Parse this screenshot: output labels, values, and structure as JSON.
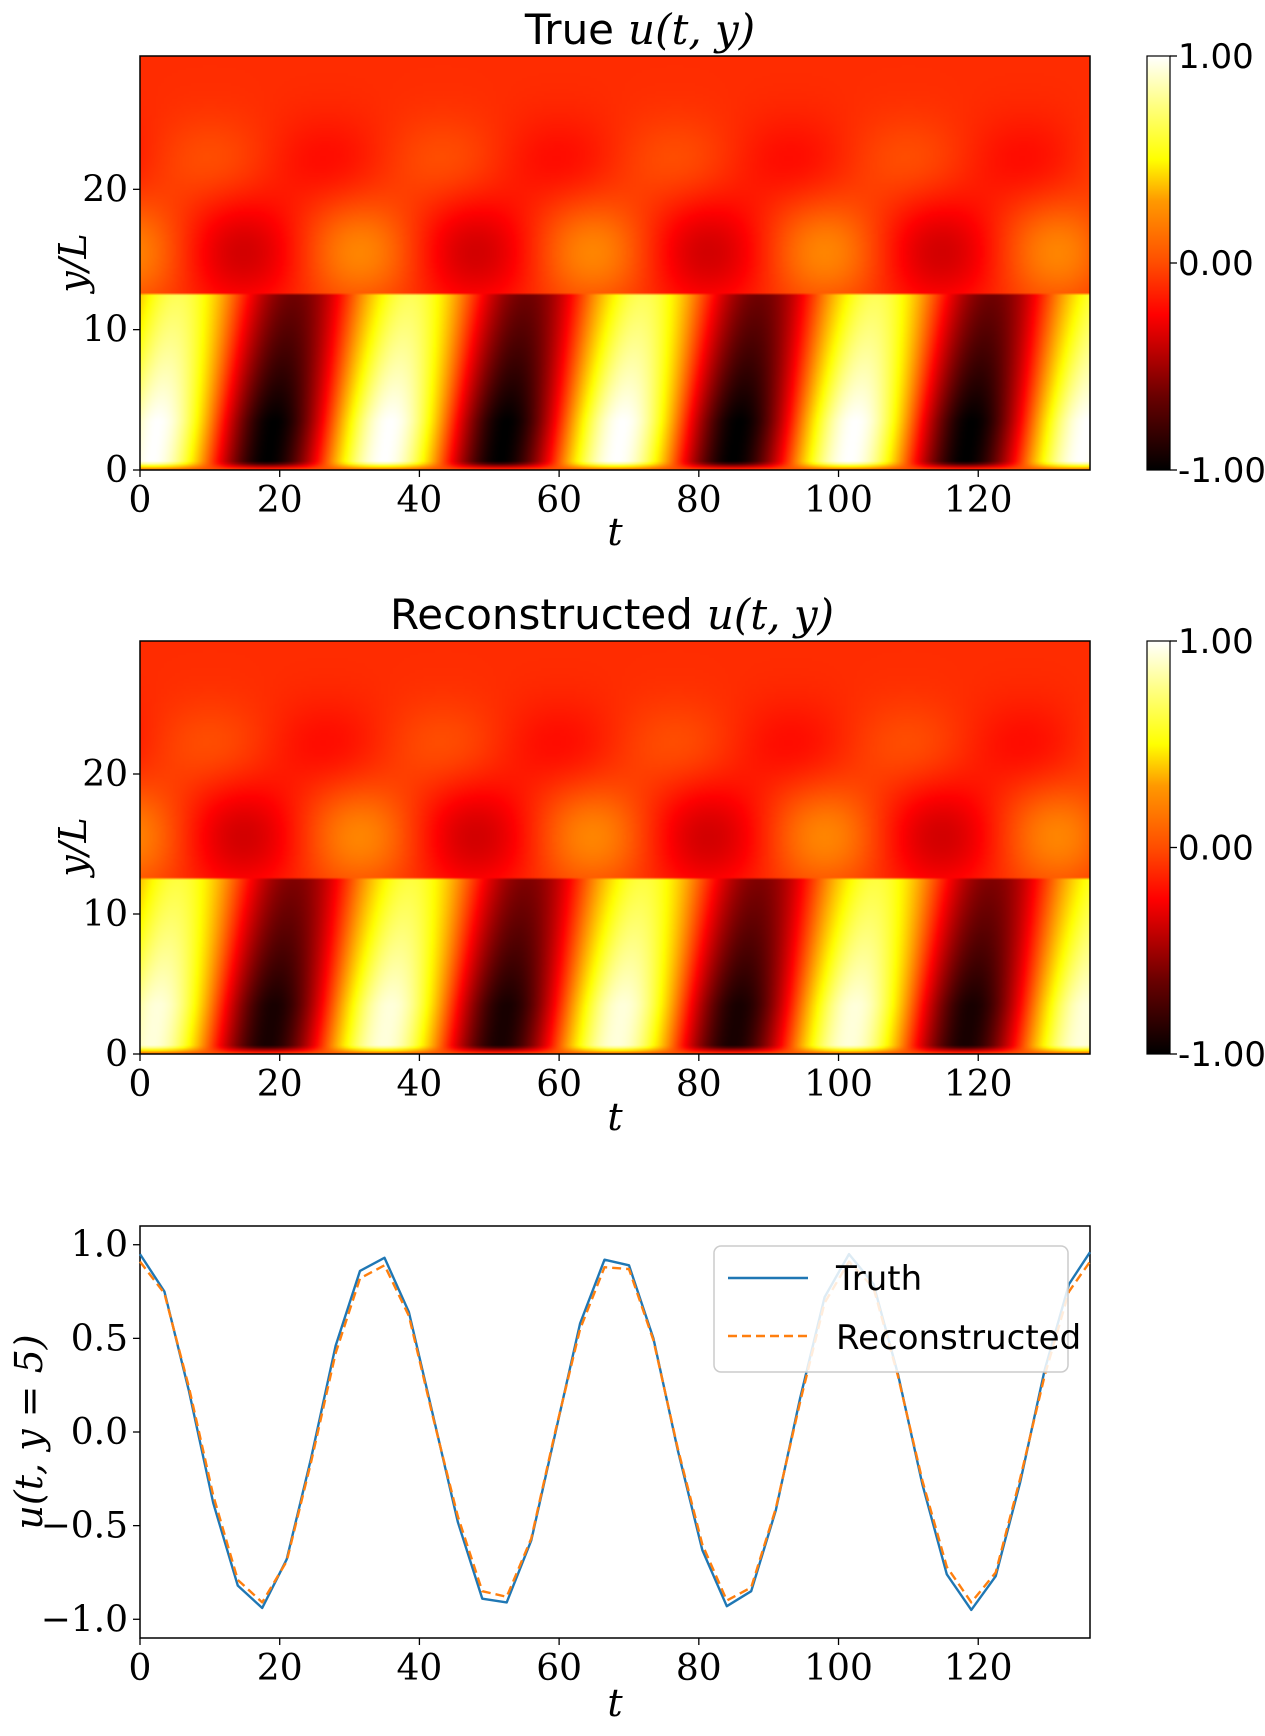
{
  "chart_data": [
    {
      "type": "heatmap",
      "title_text": "True",
      "title_math": "u(t, y)",
      "xlabel": "t",
      "ylabel": "y/L",
      "xlim": [
        0,
        136
      ],
      "ylim": [
        0,
        29.5
      ],
      "xticks": [
        "0",
        "20",
        "40",
        "60",
        "80",
        "100",
        "120"
      ],
      "xtick_values": [
        0,
        20,
        40,
        60,
        80,
        100,
        120
      ],
      "yticks": [
        "0",
        "10",
        "20"
      ],
      "ytick_values": [
        0,
        10,
        20
      ],
      "colormap": "hot",
      "colorbar_ticks": [
        "1.00",
        "0.00",
        "-1.00"
      ],
      "colorbar_values": [
        1,
        0,
        -1
      ],
      "period": 33.3,
      "amplitude": 1.0
    },
    {
      "type": "heatmap",
      "title_text": "Reconstructed",
      "title_math": "u(t, y)",
      "xlabel": "t",
      "ylabel": "y/L",
      "xlim": [
        0,
        136
      ],
      "ylim": [
        0,
        29.5
      ],
      "xticks": [
        "0",
        "20",
        "40",
        "60",
        "80",
        "100",
        "120"
      ],
      "xtick_values": [
        0,
        20,
        40,
        60,
        80,
        100,
        120
      ],
      "yticks": [
        "0",
        "10",
        "20"
      ],
      "ytick_values": [
        0,
        10,
        20
      ],
      "colormap": "hot",
      "colorbar_ticks": [
        "1.00",
        "0.00",
        "-1.00"
      ],
      "colorbar_values": [
        1,
        0,
        -1
      ],
      "period": 33.3,
      "amplitude": 0.93
    },
    {
      "type": "line",
      "xlabel": "t",
      "ylabel": "u(t, y = 5)",
      "xlim": [
        0,
        136
      ],
      "ylim": [
        -1.1,
        1.1
      ],
      "xticks": [
        "0",
        "20",
        "40",
        "60",
        "80",
        "100",
        "120"
      ],
      "xtick_values": [
        0,
        20,
        40,
        60,
        80,
        100,
        120
      ],
      "yticks": [
        "1.0",
        "0.5",
        "0.0",
        "−0.5",
        "−1.0"
      ],
      "ytick_values": [
        1.0,
        0.5,
        0.0,
        -0.5,
        -1.0
      ],
      "legend_position": "upper right",
      "x": [
        0,
        3.5,
        7,
        10.5,
        14,
        17.5,
        21,
        24.5,
        28,
        31.5,
        35,
        38.5,
        42,
        45.5,
        49,
        52.5,
        56,
        59.5,
        63,
        66.5,
        70,
        73.5,
        77,
        80.5,
        84,
        87.5,
        91,
        94.5,
        98,
        101.5,
        105,
        108.5,
        112,
        115.5,
        119,
        122.5,
        126,
        129.5,
        133,
        136
      ],
      "series": [
        {
          "name": "Truth",
          "color": "#1f77b4",
          "style": "solid",
          "values": [
            0.95,
            0.75,
            0.22,
            -0.38,
            -0.82,
            -0.94,
            -0.68,
            -0.14,
            0.46,
            0.86,
            0.93,
            0.64,
            0.08,
            -0.48,
            -0.89,
            -0.91,
            -0.58,
            0.0,
            0.58,
            0.92,
            0.89,
            0.5,
            -0.1,
            -0.63,
            -0.93,
            -0.85,
            -0.42,
            0.18,
            0.72,
            0.95,
            0.79,
            0.31,
            -0.28,
            -0.76,
            -0.95,
            -0.77,
            -0.27,
            0.33,
            0.79,
            0.96
          ]
        },
        {
          "name": "Reconstructed",
          "color": "#ff7f0e",
          "style": "dashed",
          "values": [
            0.91,
            0.74,
            0.24,
            -0.34,
            -0.79,
            -0.91,
            -0.69,
            -0.16,
            0.42,
            0.82,
            0.89,
            0.62,
            0.07,
            -0.45,
            -0.85,
            -0.88,
            -0.57,
            0.01,
            0.55,
            0.88,
            0.87,
            0.49,
            -0.09,
            -0.6,
            -0.9,
            -0.83,
            -0.41,
            0.16,
            0.69,
            0.91,
            0.77,
            0.3,
            -0.26,
            -0.72,
            -0.91,
            -0.75,
            -0.25,
            0.3,
            0.75,
            0.91
          ]
        }
      ]
    }
  ]
}
